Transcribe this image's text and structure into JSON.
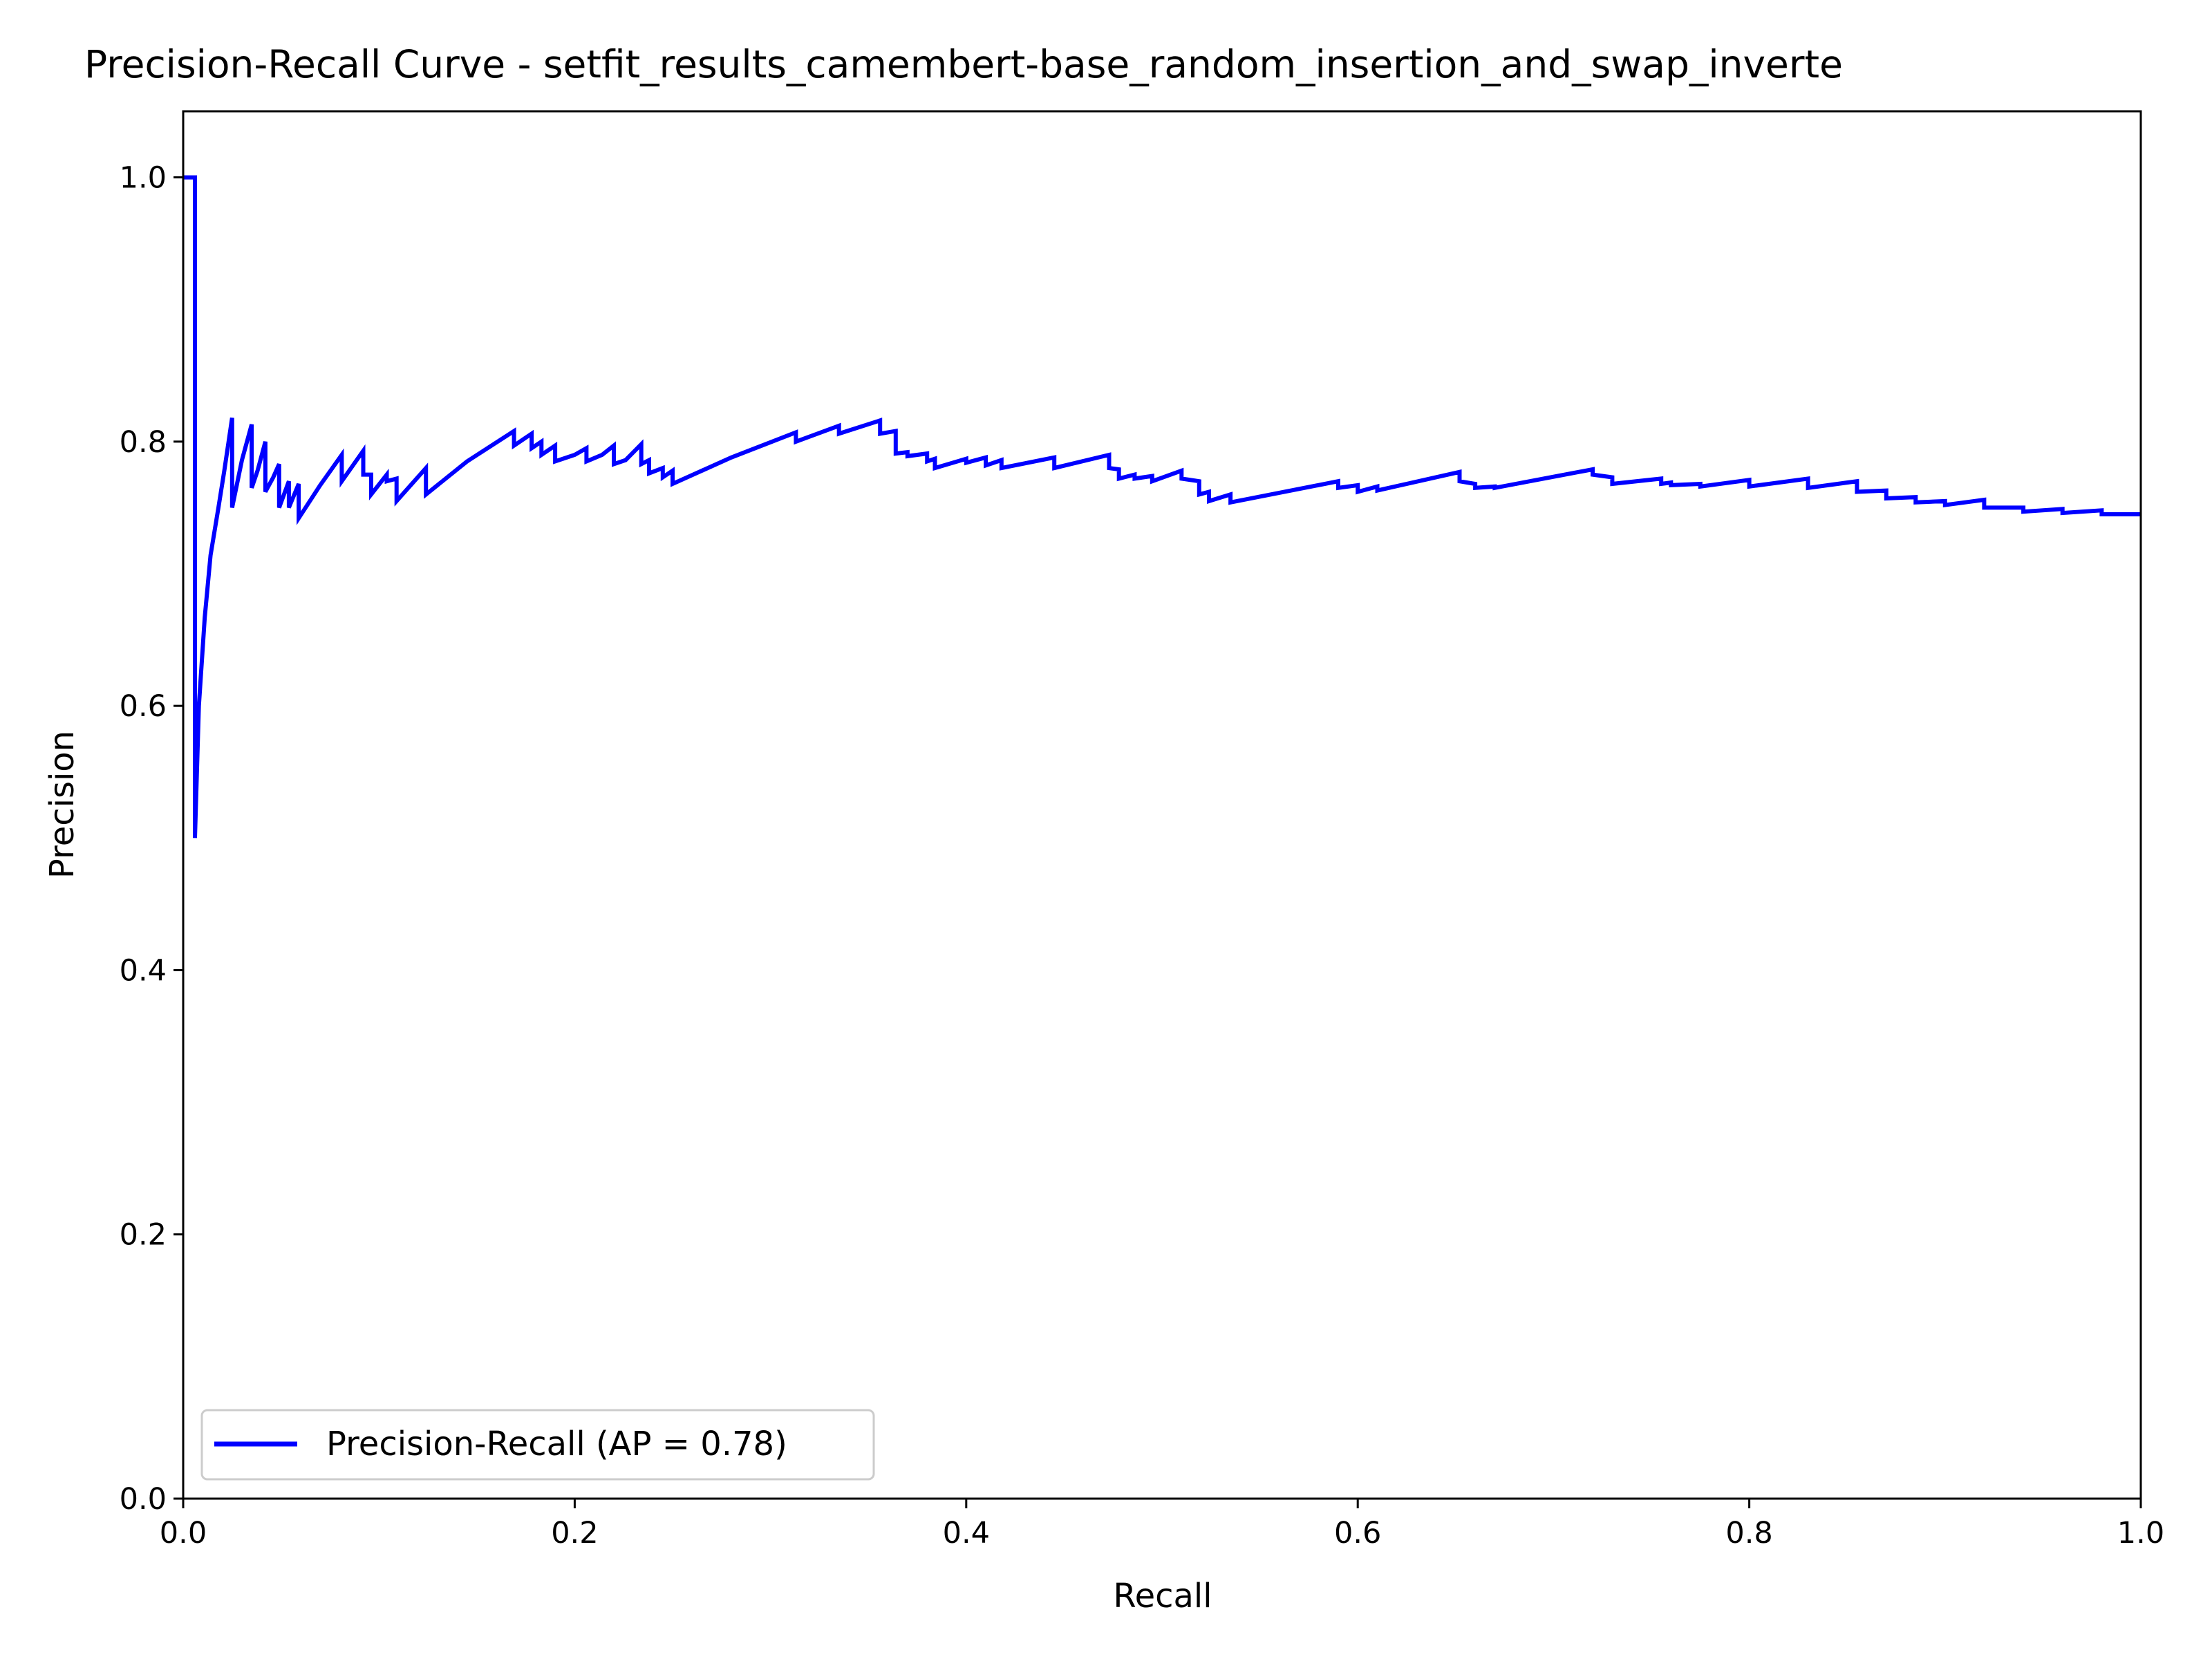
{
  "chart_data": {
    "type": "line",
    "title": "Precision-Recall Curve - setfit_results_camembert-base_random_insertion_and_swap_inverte",
    "xlabel": "Recall",
    "ylabel": "Precision",
    "xlim": [
      0.0,
      1.0
    ],
    "ylim": [
      0.0,
      1.05
    ],
    "x_ticks": [
      "0.0",
      "0.2",
      "0.4",
      "0.6",
      "0.8",
      "1.0"
    ],
    "y_ticks": [
      "0.0",
      "0.2",
      "0.4",
      "0.6",
      "0.8",
      "1.0"
    ],
    "grid": false,
    "legend_position": "lower-left",
    "series": [
      {
        "name": "Precision-Recall (AP = 0.78)",
        "color": "#0000ff",
        "points": [
          [
            0.0,
            1.0
          ],
          [
            0.006,
            1.0
          ],
          [
            0.006,
            0.5
          ],
          [
            0.008,
            0.6
          ],
          [
            0.011,
            0.667
          ],
          [
            0.014,
            0.714
          ],
          [
            0.018,
            0.75
          ],
          [
            0.021,
            0.778
          ],
          [
            0.025,
            0.818
          ],
          [
            0.025,
            0.75
          ],
          [
            0.03,
            0.786
          ],
          [
            0.035,
            0.813
          ],
          [
            0.035,
            0.765
          ],
          [
            0.038,
            0.778
          ],
          [
            0.042,
            0.8
          ],
          [
            0.042,
            0.762
          ],
          [
            0.046,
            0.773
          ],
          [
            0.049,
            0.783
          ],
          [
            0.049,
            0.75
          ],
          [
            0.054,
            0.77
          ],
          [
            0.054,
            0.75
          ],
          [
            0.059,
            0.768
          ],
          [
            0.059,
            0.742
          ],
          [
            0.07,
            0.767
          ],
          [
            0.081,
            0.79
          ],
          [
            0.081,
            0.77
          ],
          [
            0.092,
            0.793
          ],
          [
            0.092,
            0.775
          ],
          [
            0.096,
            0.775
          ],
          [
            0.096,
            0.76
          ],
          [
            0.104,
            0.775
          ],
          [
            0.104,
            0.77
          ],
          [
            0.109,
            0.772
          ],
          [
            0.109,
            0.755
          ],
          [
            0.124,
            0.78
          ],
          [
            0.124,
            0.76
          ],
          [
            0.145,
            0.785
          ],
          [
            0.169,
            0.808
          ],
          [
            0.169,
            0.797
          ],
          [
            0.178,
            0.806
          ],
          [
            0.178,
            0.795
          ],
          [
            0.183,
            0.8
          ],
          [
            0.183,
            0.79
          ],
          [
            0.19,
            0.797
          ],
          [
            0.19,
            0.785
          ],
          [
            0.2,
            0.79
          ],
          [
            0.206,
            0.795
          ],
          [
            0.206,
            0.785
          ],
          [
            0.214,
            0.79
          ],
          [
            0.22,
            0.797
          ],
          [
            0.22,
            0.783
          ],
          [
            0.226,
            0.786
          ],
          [
            0.234,
            0.798
          ],
          [
            0.234,
            0.783
          ],
          [
            0.238,
            0.786
          ],
          [
            0.238,
            0.776
          ],
          [
            0.245,
            0.78
          ],
          [
            0.245,
            0.773
          ],
          [
            0.25,
            0.778
          ],
          [
            0.25,
            0.768
          ],
          [
            0.28,
            0.788
          ],
          [
            0.313,
            0.807
          ],
          [
            0.313,
            0.8
          ],
          [
            0.335,
            0.812
          ],
          [
            0.335,
            0.806
          ],
          [
            0.356,
            0.816
          ],
          [
            0.356,
            0.806
          ],
          [
            0.364,
            0.808
          ],
          [
            0.364,
            0.791
          ],
          [
            0.37,
            0.792
          ],
          [
            0.37,
            0.789
          ],
          [
            0.38,
            0.791
          ],
          [
            0.38,
            0.785
          ],
          [
            0.384,
            0.787
          ],
          [
            0.384,
            0.78
          ],
          [
            0.4,
            0.787
          ],
          [
            0.4,
            0.784
          ],
          [
            0.41,
            0.788
          ],
          [
            0.41,
            0.782
          ],
          [
            0.418,
            0.786
          ],
          [
            0.418,
            0.78
          ],
          [
            0.445,
            0.788
          ],
          [
            0.445,
            0.78
          ],
          [
            0.473,
            0.79
          ],
          [
            0.473,
            0.78
          ],
          [
            0.478,
            0.779
          ],
          [
            0.478,
            0.772
          ],
          [
            0.486,
            0.775
          ],
          [
            0.486,
            0.772
          ],
          [
            0.495,
            0.774
          ],
          [
            0.495,
            0.77
          ],
          [
            0.51,
            0.778
          ],
          [
            0.51,
            0.772
          ],
          [
            0.519,
            0.77
          ],
          [
            0.519,
            0.76
          ],
          [
            0.524,
            0.762
          ],
          [
            0.524,
            0.755
          ],
          [
            0.535,
            0.76
          ],
          [
            0.535,
            0.754
          ],
          [
            0.59,
            0.77
          ],
          [
            0.59,
            0.765
          ],
          [
            0.6,
            0.767
          ],
          [
            0.6,
            0.762
          ],
          [
            0.61,
            0.766
          ],
          [
            0.61,
            0.763
          ],
          [
            0.652,
            0.777
          ],
          [
            0.652,
            0.77
          ],
          [
            0.66,
            0.768
          ],
          [
            0.66,
            0.765
          ],
          [
            0.67,
            0.766
          ],
          [
            0.67,
            0.765
          ],
          [
            0.72,
            0.779
          ],
          [
            0.72,
            0.775
          ],
          [
            0.73,
            0.773
          ],
          [
            0.73,
            0.768
          ],
          [
            0.755,
            0.772
          ],
          [
            0.755,
            0.768
          ],
          [
            0.76,
            0.769
          ],
          [
            0.76,
            0.767
          ],
          [
            0.775,
            0.768
          ],
          [
            0.775,
            0.766
          ],
          [
            0.8,
            0.771
          ],
          [
            0.8,
            0.766
          ],
          [
            0.83,
            0.772
          ],
          [
            0.83,
            0.765
          ],
          [
            0.855,
            0.77
          ],
          [
            0.855,
            0.762
          ],
          [
            0.87,
            0.763
          ],
          [
            0.87,
            0.757
          ],
          [
            0.885,
            0.758
          ],
          [
            0.885,
            0.754
          ],
          [
            0.9,
            0.755
          ],
          [
            0.9,
            0.752
          ],
          [
            0.92,
            0.756
          ],
          [
            0.92,
            0.75
          ],
          [
            0.94,
            0.75
          ],
          [
            0.94,
            0.747
          ],
          [
            0.96,
            0.749
          ],
          [
            0.96,
            0.746
          ],
          [
            0.98,
            0.748
          ],
          [
            0.98,
            0.745
          ],
          [
            1.0,
            0.745
          ]
        ]
      }
    ]
  }
}
